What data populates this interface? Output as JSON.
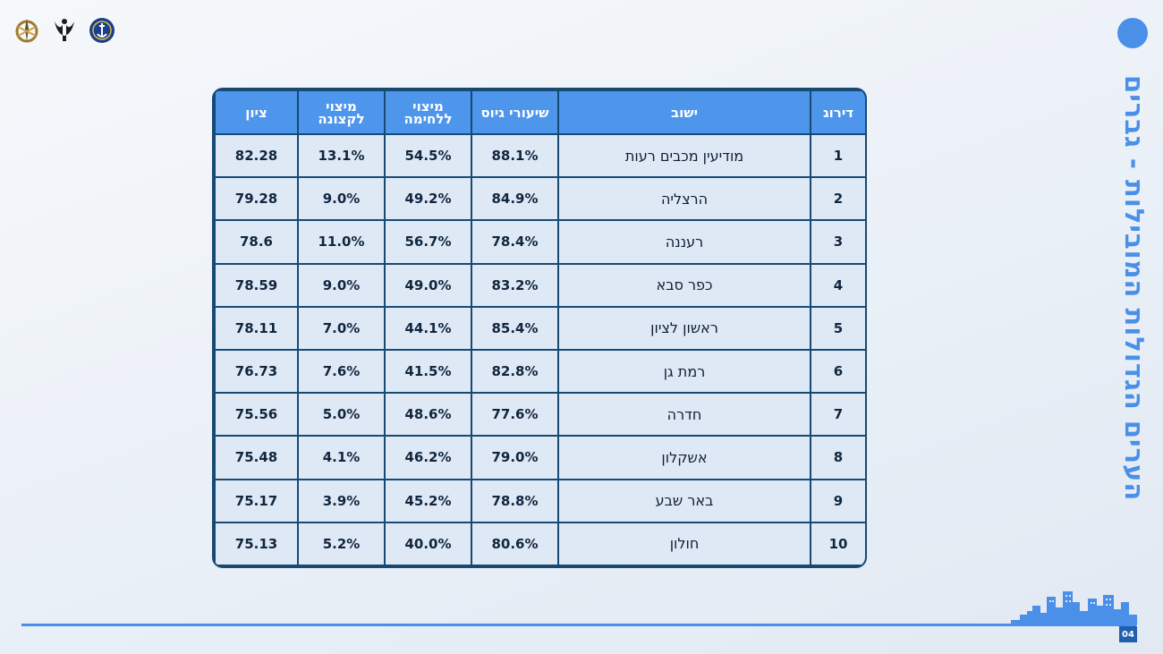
{
  "title": "הערים הגדולות המובילות - גברים",
  "page_number": "04",
  "logos": [
    "idf-emblem-icon",
    "unit-emblem-icon",
    "navy-emblem-icon"
  ],
  "colors": {
    "accent": "#4a8fe8",
    "table_border": "#174a73",
    "header_bg": "#4d96ec",
    "cell_bg": "#dfe9f6"
  },
  "table": {
    "headers": {
      "rank": "דירוג",
      "city": "ישוב",
      "recruit_rate": "שיעורי גיוס",
      "combat": "מיצוי ללחימה",
      "officers": "מיצוי לקצונה",
      "score": "ציון"
    },
    "rows": [
      {
        "rank": "1",
        "city": "מודיעין מכבים רעות",
        "recruit_rate": "88.1%",
        "combat": "54.5%",
        "officers": "13.1%",
        "score": "82.28"
      },
      {
        "rank": "2",
        "city": "הרצליה",
        "recruit_rate": "84.9%",
        "combat": "49.2%",
        "officers": "9.0%",
        "score": "79.28"
      },
      {
        "rank": "3",
        "city": "רעננה",
        "recruit_rate": "78.4%",
        "combat": "56.7%",
        "officers": "11.0%",
        "score": "78.6"
      },
      {
        "rank": "4",
        "city": "כפר סבא",
        "recruit_rate": "83.2%",
        "combat": "49.0%",
        "officers": "9.0%",
        "score": "78.59"
      },
      {
        "rank": "5",
        "city": "ראשון לציון",
        "recruit_rate": "85.4%",
        "combat": "44.1%",
        "officers": "7.0%",
        "score": "78.11"
      },
      {
        "rank": "6",
        "city": "רמת גן",
        "recruit_rate": "82.8%",
        "combat": "41.5%",
        "officers": "7.6%",
        "score": "76.73"
      },
      {
        "rank": "7",
        "city": "חדרה",
        "recruit_rate": "77.6%",
        "combat": "48.6%",
        "officers": "5.0%",
        "score": "75.56"
      },
      {
        "rank": "8",
        "city": "אשקלון",
        "recruit_rate": "79.0%",
        "combat": "46.2%",
        "officers": "4.1%",
        "score": "75.48"
      },
      {
        "rank": "9",
        "city": "באר שבע",
        "recruit_rate": "78.8%",
        "combat": "45.2%",
        "officers": "3.9%",
        "score": "75.17"
      },
      {
        "rank": "10",
        "city": "חולון",
        "recruit_rate": "80.6%",
        "combat": "40.0%",
        "officers": "5.2%",
        "score": "75.13"
      }
    ]
  }
}
